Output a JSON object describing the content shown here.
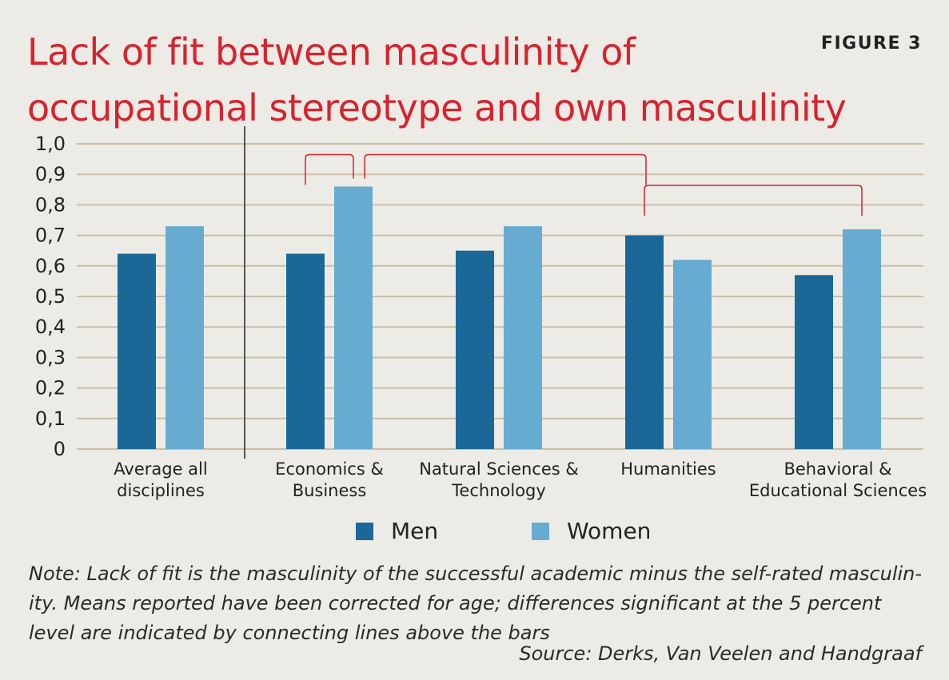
{
  "title": "Lack of fit between masculinity of occupational stereotype and own masculinity",
  "figure_label": "FIGURE 3",
  "colors": {
    "men": "#1b6898",
    "women": "#67abd1",
    "grid": "#c9bfa8",
    "significance": "#d7232f",
    "background": "#ecebe5"
  },
  "chart_data": {
    "type": "bar",
    "categories": [
      [
        "Average all",
        "disciplines"
      ],
      [
        "Economics &",
        "Business"
      ],
      [
        "Natural Sciences &",
        "Technology"
      ],
      [
        "Humanities"
      ],
      [
        "Behavioral &",
        "Educational Sciences"
      ]
    ],
    "series": [
      {
        "name": "Men",
        "values": [
          0.64,
          0.64,
          0.65,
          0.7,
          0.57
        ]
      },
      {
        "name": "Women",
        "values": [
          0.73,
          0.86,
          0.73,
          0.62,
          0.72
        ]
      }
    ],
    "ylim": [
      0,
      1.0
    ],
    "yticks": [
      "0",
      "0,1",
      "0,2",
      "0,3",
      "0,4",
      "0,5",
      "0,6",
      "0,7",
      "0,8",
      "0,9",
      "1,0"
    ],
    "grid": true,
    "legend": "bottom-center",
    "significance_brackets": [
      {
        "from": {
          "category": 1,
          "series": "Men"
        },
        "to": {
          "category": 1,
          "series": "Women"
        }
      },
      {
        "from": {
          "category": 1,
          "series": "Women"
        },
        "to": {
          "category": 3,
          "series": "Men"
        }
      },
      {
        "from": {
          "category": 3,
          "series": "Men"
        },
        "to": {
          "category": 4,
          "series": "Women"
        }
      }
    ]
  },
  "legend": {
    "men_label": "Men",
    "women_label": "Women"
  },
  "note": "Note: Lack of fit is the masculinity of the successful academic minus the self-rated masculin-ity. Means reported have been corrected for age; differences significant at the 5 percent level are indicated by connecting lines above the bars",
  "source": "Source: Derks, Van Veelen and Handgraaf"
}
